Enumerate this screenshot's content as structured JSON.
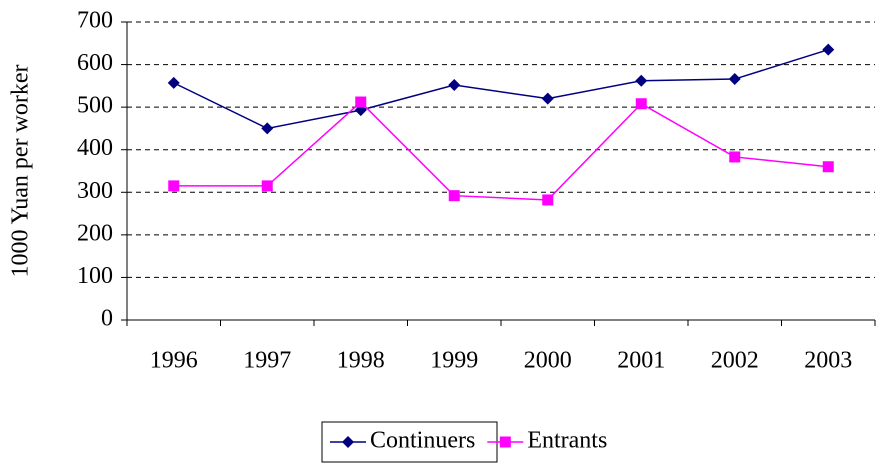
{
  "chart_data": {
    "type": "line",
    "y_label": "1000 Yuan per worker",
    "categories": [
      "1996",
      "1997",
      "1998",
      "1999",
      "2000",
      "2001",
      "2002",
      "2003"
    ],
    "series": [
      {
        "name": "Continuers",
        "color": "#000080",
        "marker": "diamond",
        "values": [
          557,
          450,
          493,
          552,
          520,
          562,
          566,
          635
        ]
      },
      {
        "name": "Entrants",
        "color": "#ff00ff",
        "marker": "square",
        "values": [
          315,
          315,
          512,
          292,
          282,
          508,
          383,
          360
        ]
      }
    ],
    "ylim": [
      0,
      700
    ],
    "yticks": [
      0,
      100,
      200,
      300,
      400,
      500,
      600,
      700
    ],
    "grid": true,
    "legend": "bottom"
  }
}
